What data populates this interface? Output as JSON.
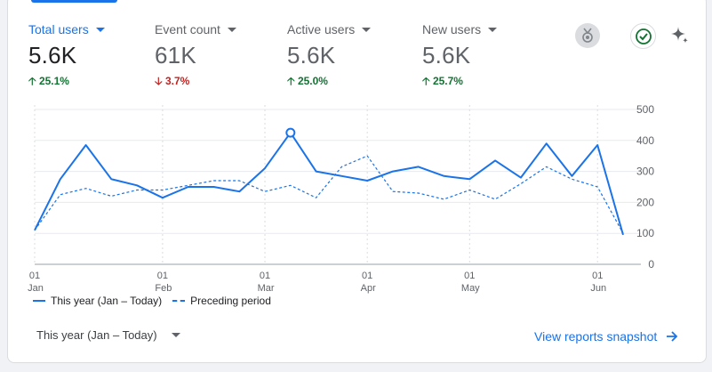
{
  "metrics": [
    {
      "label": "Total users",
      "value": "5.6K",
      "change": "25.1%",
      "direction": "up"
    },
    {
      "label": "Event count",
      "value": "61K",
      "change": "3.7%",
      "direction": "down"
    },
    {
      "label": "Active users",
      "value": "5.6K",
      "change": "25.0%",
      "direction": "up"
    },
    {
      "label": "New users",
      "value": "5.6K",
      "change": "25.7%",
      "direction": "up"
    }
  ],
  "icons": {
    "award": "award-icon",
    "check": "check-circle-icon",
    "sparkle": "sparkle-icon"
  },
  "legend": {
    "current": "This year (Jan – Today)",
    "previous": "Preceding period"
  },
  "footer": {
    "date_range": "This year (Jan – Today)",
    "link": "View reports snapshot"
  },
  "colors": {
    "accent": "#1a73e8",
    "up": "#137333",
    "down": "#c5221f"
  },
  "chart_data": {
    "type": "line",
    "ylim": [
      0,
      500
    ],
    "yticks": [
      0,
      100,
      200,
      300,
      400,
      500
    ],
    "x_tick_labels": [
      {
        "day": "01",
        "month": "Jan",
        "index": 0
      },
      {
        "day": "01",
        "month": "Feb",
        "index": 5
      },
      {
        "day": "01",
        "month": "Mar",
        "index": 9
      },
      {
        "day": "01",
        "month": "Apr",
        "index": 13
      },
      {
        "day": "01",
        "month": "May",
        "index": 17
      },
      {
        "day": "01",
        "month": "Jun",
        "index": 22
      }
    ],
    "highlight_index": 10,
    "grid": true,
    "legend_position": "bottom-left",
    "series": [
      {
        "name": "This year (Jan – Today)",
        "style": "solid",
        "values": [
          110,
          275,
          385,
          275,
          255,
          215,
          250,
          250,
          235,
          310,
          425,
          300,
          285,
          270,
          300,
          315,
          285,
          275,
          335,
          280,
          390,
          285,
          385,
          95
        ]
      },
      {
        "name": "Preceding period",
        "style": "dashed",
        "values": [
          110,
          225,
          245,
          220,
          240,
          240,
          255,
          270,
          270,
          235,
          255,
          215,
          315,
          350,
          235,
          230,
          210,
          240,
          210,
          260,
          315,
          275,
          250,
          100
        ]
      }
    ]
  }
}
